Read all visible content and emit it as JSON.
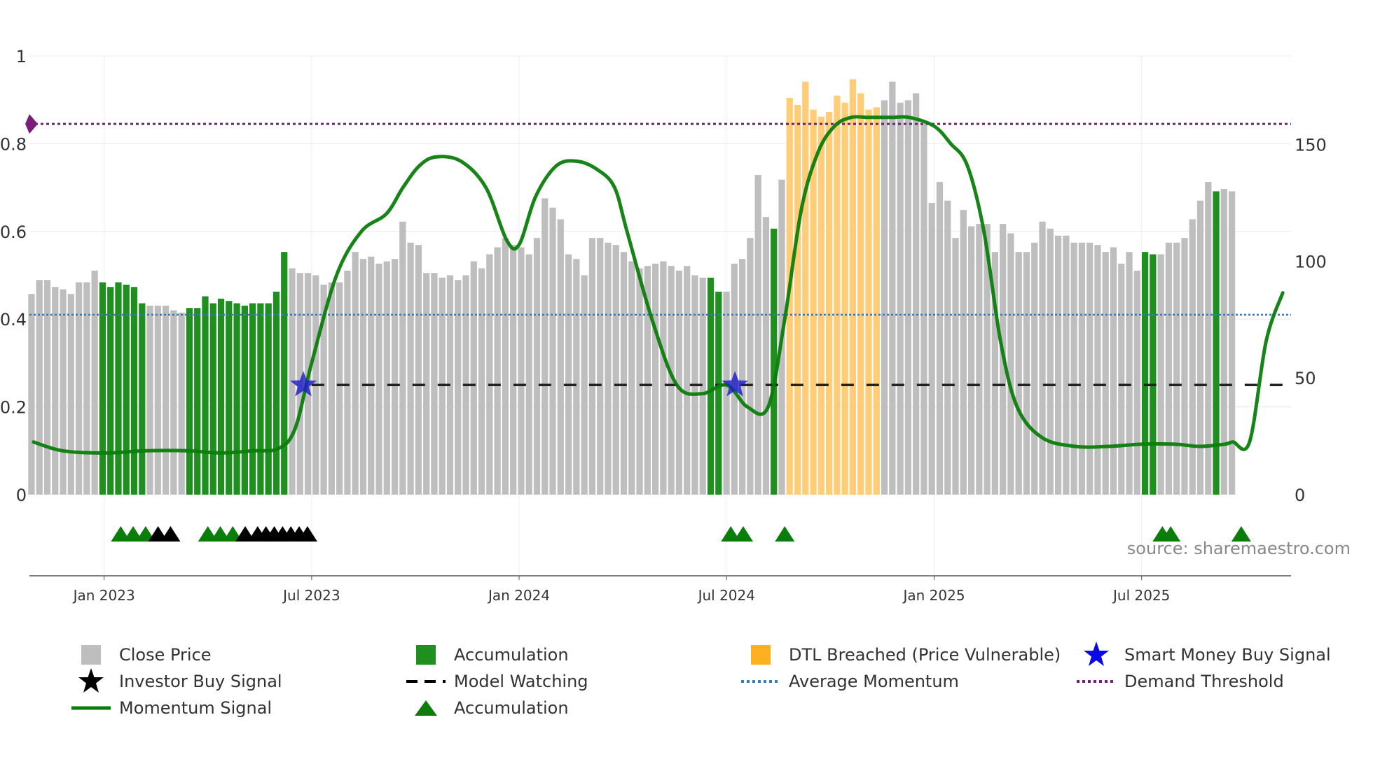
{
  "chart_data": {
    "type": "bar",
    "title": "",
    "source": "source: sharemaestro.com",
    "x_range": [
      2022.82,
      2025.86
    ],
    "left_axis": {
      "ylim": [
        0,
        1
      ],
      "ticks": [
        0,
        0.2,
        0.4,
        0.6,
        0.8,
        1
      ],
      "tick_labels": [
        "0",
        "0.2",
        "0.4",
        "0.6",
        "0.8",
        "1"
      ]
    },
    "right_axis": {
      "ylim": [
        0,
        188
      ],
      "ticks": [
        0,
        50,
        100,
        150
      ],
      "tick_labels": [
        "0",
        "50",
        "100",
        "150"
      ]
    },
    "x_ticks": [
      {
        "value": 2023.0,
        "label": "Jan 2023"
      },
      {
        "value": 2023.5,
        "label": "Jul 2023"
      },
      {
        "value": 2024.0,
        "label": "Jan 2024"
      },
      {
        "value": 2024.5,
        "label": "Jul 2024"
      },
      {
        "value": 2025.0,
        "label": "Jan 2025"
      },
      {
        "value": 2025.5,
        "label": "Jul 2025"
      }
    ],
    "price_series": {
      "name": "Close Price",
      "x_start": 2022.825,
      "x_step": 0.01903,
      "values": [
        86,
        92,
        92,
        89,
        88,
        86,
        91,
        91,
        96,
        91,
        89,
        91,
        90,
        89,
        82,
        81,
        81,
        81,
        79,
        78,
        80,
        80,
        85,
        82,
        84,
        83,
        82,
        81,
        82,
        82,
        82,
        87,
        104,
        97,
        95,
        95,
        94,
        90,
        91,
        91,
        96,
        104,
        101,
        102,
        99,
        100,
        101,
        117,
        108,
        107,
        95,
        95,
        93,
        94,
        92,
        94,
        100,
        97,
        103,
        106,
        110,
        107,
        106,
        103,
        110,
        127,
        123,
        118,
        103,
        101,
        94,
        110,
        110,
        108,
        107,
        104,
        100,
        97,
        98,
        99,
        100,
        98,
        96,
        98,
        94,
        93,
        93,
        87,
        87,
        99,
        101,
        110,
        137,
        119,
        114,
        135,
        170,
        167,
        177,
        165,
        162,
        164,
        171,
        168,
        178,
        172,
        165,
        166,
        169,
        177,
        168,
        169,
        172,
        159,
        125,
        134,
        126,
        110,
        122,
        115,
        116,
        116,
        104,
        116,
        112,
        104,
        104,
        108,
        117,
        114,
        111,
        111,
        108,
        108,
        108,
        107,
        104,
        106,
        99,
        104,
        96,
        104,
        103,
        103,
        108,
        108,
        110,
        118,
        126,
        134,
        130,
        131,
        130
      ],
      "color": "#bebebe",
      "accumulation_color": "#1f8f1f",
      "breached_color": "#ffcc77"
    },
    "accumulation_bars_index": [
      [
        9,
        14
      ],
      [
        20,
        32
      ],
      [
        86,
        87
      ],
      [
        94,
        94
      ],
      [
        141,
        142
      ],
      [
        150,
        150
      ]
    ],
    "breached_bars_index": [
      [
        96,
        107
      ]
    ],
    "momentum_series": {
      "name": "Momentum Signal",
      "color": "#0b7d0b",
      "x": [
        2022.83,
        2022.9,
        2023.0,
        2023.1,
        2023.2,
        2023.28,
        2023.36,
        2023.42,
        2023.46,
        2023.5,
        2023.56,
        2023.62,
        2023.68,
        2023.72,
        2023.76,
        2023.8,
        2023.86,
        2023.92,
        2023.97,
        2024.0,
        2024.04,
        2024.09,
        2024.14,
        2024.19,
        2024.23,
        2024.26,
        2024.32,
        2024.38,
        2024.44,
        2024.5,
        2024.55,
        2024.6,
        2024.64,
        2024.68,
        2024.72,
        2024.76,
        2024.8,
        2024.84,
        2024.87,
        2024.9,
        2024.94,
        2025.0,
        2025.04,
        2025.08,
        2025.12,
        2025.16,
        2025.2,
        2025.26,
        2025.34,
        2025.42,
        2025.5,
        2025.58,
        2025.64,
        2025.7,
        2025.72,
        2025.76,
        2025.8,
        2025.84
      ],
      "y": [
        0.12,
        0.1,
        0.095,
        0.1,
        0.1,
        0.095,
        0.1,
        0.105,
        0.15,
        0.3,
        0.5,
        0.6,
        0.64,
        0.7,
        0.75,
        0.77,
        0.76,
        0.7,
        0.58,
        0.57,
        0.68,
        0.75,
        0.76,
        0.74,
        0.7,
        0.6,
        0.4,
        0.25,
        0.23,
        0.25,
        0.2,
        0.2,
        0.4,
        0.65,
        0.78,
        0.84,
        0.86,
        0.86,
        0.86,
        0.86,
        0.86,
        0.84,
        0.8,
        0.75,
        0.6,
        0.35,
        0.2,
        0.13,
        0.11,
        0.11,
        0.115,
        0.115,
        0.11,
        0.115,
        0.12,
        0.12,
        0.35,
        0.46
      ]
    },
    "avg_momentum": {
      "name": "Average Momentum",
      "value": 0.41,
      "color": "#3a7ab8"
    },
    "demand_threshold": {
      "name": "Demand Threshold",
      "value": 0.845,
      "color": "#7a1c7a"
    },
    "model_watching": {
      "name": "Model Watching",
      "value": 0.25,
      "x_from": 2023.5,
      "x_to": 2025.86
    },
    "smart_money_signals": {
      "name": "Smart Money Buy Signal",
      "x": [
        2023.48,
        2024.52
      ],
      "y": 0.25,
      "color": "#1a1acc"
    },
    "accumulation_markers": {
      "name": "Accumulation",
      "x": [
        2023.04,
        2023.07,
        2023.1,
        2023.25,
        2023.28,
        2023.31,
        2024.51,
        2024.54,
        2024.64,
        2025.55,
        2025.57,
        2025.74
      ]
    },
    "investor_signals": {
      "name": "Investor Buy Signal",
      "x": [
        2023.13,
        2023.16,
        2023.34,
        2023.37,
        2023.39,
        2023.41,
        2023.43,
        2023.45,
        2023.47,
        2023.49
      ]
    },
    "legend": [
      "Close Price",
      "Accumulation",
      "DTL Breached (Price Vulnerable)",
      "Smart Money Buy Signal",
      "Investor Buy Signal",
      "Model Watching",
      "Average Momentum",
      "Demand Threshold",
      "Momentum Signal",
      "Accumulation"
    ]
  }
}
